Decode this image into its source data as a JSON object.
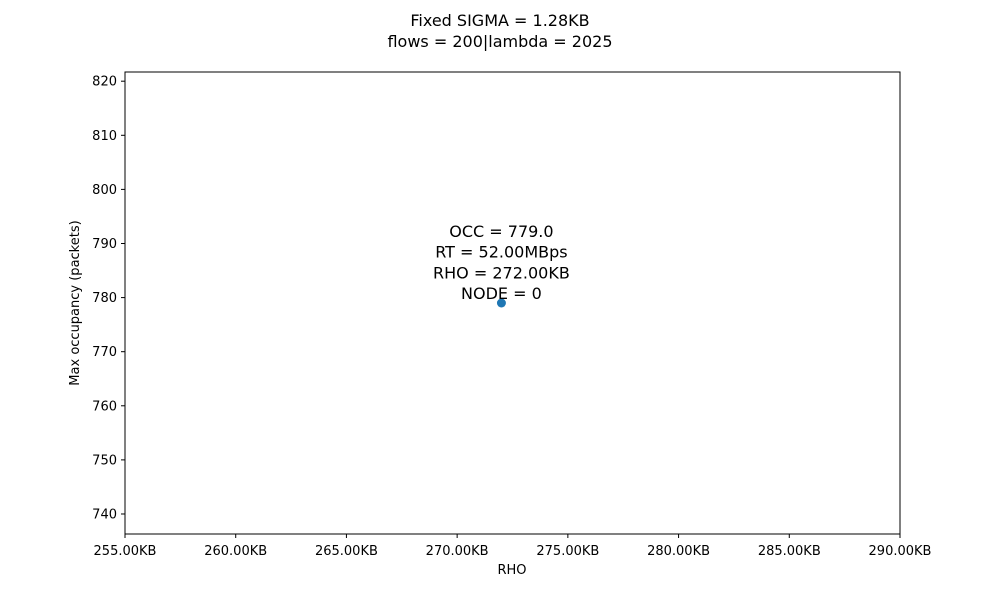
{
  "chart_data": {
    "type": "scatter",
    "title": "Fixed SIGMA = 1.28KB",
    "subtitle": "flows = 200|lambda = 2025",
    "xlabel": "RHO",
    "ylabel": "Max occupancy (packets)",
    "xlim": [
      255,
      290
    ],
    "ylim": [
      736.3,
      821.7
    ],
    "x_ticks": [
      255,
      260,
      265,
      270,
      275,
      280,
      285,
      290
    ],
    "x_tick_labels": [
      "255.00KB",
      "260.00KB",
      "265.00KB",
      "270.00KB",
      "275.00KB",
      "280.00KB",
      "285.00KB",
      "290.00KB"
    ],
    "y_ticks": [
      740,
      750,
      760,
      770,
      780,
      790,
      800,
      810,
      820
    ],
    "y_tick_labels": [
      "740",
      "750",
      "760",
      "770",
      "780",
      "790",
      "800",
      "810",
      "820"
    ],
    "grid": false,
    "points": [
      {
        "x": 272,
        "y": 779,
        "color": "#1f77b4"
      }
    ],
    "annotations": [
      {
        "x": 272,
        "y": 779,
        "lines": [
          "OCC = 779.0",
          "RT = 52.00MBps",
          "RHO = 272.00KB",
          "NODE = 0"
        ]
      }
    ]
  }
}
